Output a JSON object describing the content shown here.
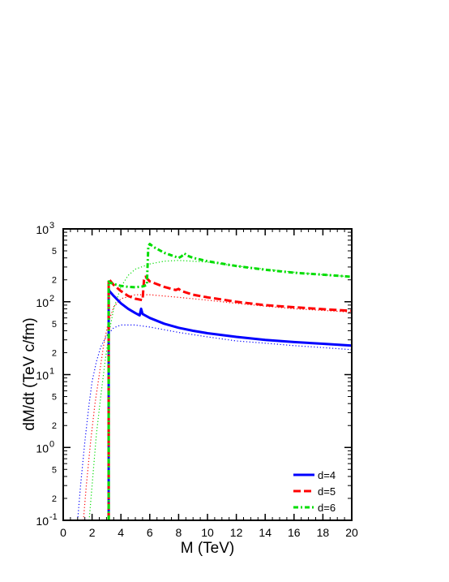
{
  "chart_data": {
    "type": "line",
    "title": "",
    "xlabel": "M (TeV)",
    "ylabel": "dM/dt (TeV c/fm)",
    "xlim": [
      0,
      20
    ],
    "ylim": [
      0.1,
      1000
    ],
    "yscale": "log",
    "grid": false,
    "legend_position": "bottom-right",
    "x_ticks": [
      0,
      2,
      4,
      6,
      8,
      10,
      12,
      14,
      16,
      18,
      20
    ],
    "y_major_ticks": [
      {
        "value": 0.1,
        "base": "10",
        "exp": "-1"
      },
      {
        "value": 1,
        "base": "10",
        "exp": "0"
      },
      {
        "value": 10,
        "base": "10",
        "exp": "1"
      },
      {
        "value": 100,
        "base": "10",
        "exp": "2"
      },
      {
        "value": 1000,
        "base": "10",
        "exp": "3"
      }
    ],
    "y_minor_labels": [
      {
        "value": 0.2,
        "label": "2"
      },
      {
        "value": 0.5,
        "label": "5"
      },
      {
        "value": 2,
        "label": "2"
      },
      {
        "value": 5,
        "label": "5"
      },
      {
        "value": 20,
        "label": "2"
      },
      {
        "value": 50,
        "label": "5"
      },
      {
        "value": 200,
        "label": "2"
      },
      {
        "value": 500,
        "label": "5"
      }
    ],
    "series": [
      {
        "name": "d=4",
        "color": "#0000ff",
        "style": "solid",
        "x": [
          3.15,
          3.15,
          3.2,
          3.5,
          4.0,
          4.5,
          5.0,
          5.3,
          5.4,
          5.5,
          6,
          7,
          8,
          9,
          10,
          12,
          14,
          16,
          18,
          20
        ],
        "y": [
          0.1,
          150,
          140,
          120,
          95,
          80,
          70,
          65,
          80,
          68,
          60,
          50,
          44,
          40,
          37,
          33,
          30,
          28,
          26.5,
          25
        ]
      },
      {
        "name": "d=5",
        "color": "#ff0000",
        "style": "dashed",
        "x": [
          3.15,
          3.15,
          3.2,
          3.5,
          4.0,
          4.5,
          5.0,
          5.5,
          5.6,
          5.7,
          6,
          7,
          7.8,
          8.0,
          8.2,
          9,
          10,
          12,
          14,
          16,
          18,
          20
        ],
        "y": [
          0.1,
          205,
          200,
          170,
          140,
          120,
          110,
          105,
          200,
          220,
          190,
          160,
          145,
          150,
          140,
          125,
          115,
          100,
          90,
          84,
          79,
          75
        ]
      },
      {
        "name": "d=6",
        "color": "#00dd00",
        "style": "dashdot",
        "x": [
          3.15,
          3.15,
          3.2,
          3.5,
          4.0,
          4.5,
          5.0,
          5.5,
          5.8,
          5.9,
          6.0,
          6.3,
          7,
          8,
          8.2,
          8.4,
          8.6,
          9,
          10,
          12,
          14,
          16,
          18,
          20
        ],
        "y": [
          0.1,
          190,
          185,
          175,
          165,
          160,
          158,
          162,
          170,
          580,
          620,
          560,
          470,
          400,
          420,
          460,
          430,
          400,
          360,
          310,
          275,
          250,
          235,
          220
        ]
      }
    ],
    "reference_series": [
      {
        "color": "#0000ff",
        "style": "dotted",
        "x": [
          1.0,
          1.2,
          1.5,
          1.8,
          2.0,
          2.3,
          2.6,
          3.0,
          3.5,
          4,
          5,
          6,
          8,
          10,
          12,
          14,
          16,
          18,
          20
        ],
        "y": [
          0.1,
          0.3,
          1.2,
          4,
          8,
          15,
          24,
          34,
          44,
          48,
          48,
          45,
          38,
          33,
          29,
          27,
          25,
          23.5,
          22
        ]
      },
      {
        "color": "#ff0000",
        "style": "dotted",
        "x": [
          1.4,
          1.6,
          1.9,
          2.2,
          2.5,
          2.8,
          3.1,
          3.5,
          4,
          5,
          6,
          8,
          10,
          12,
          14,
          16,
          18,
          20
        ],
        "y": [
          0.1,
          0.3,
          1.2,
          4,
          10,
          25,
          50,
          85,
          110,
          125,
          125,
          115,
          105,
          95,
          87,
          80,
          76,
          72
        ]
      },
      {
        "color": "#00dd00",
        "style": "dotted",
        "x": [
          1.8,
          2.0,
          2.3,
          2.6,
          2.9,
          3.2,
          3.5,
          4,
          4.5,
          5,
          6,
          7,
          8,
          10,
          12,
          14,
          16,
          18,
          20
        ],
        "y": [
          0.1,
          0.3,
          1.5,
          5,
          15,
          40,
          80,
          160,
          230,
          280,
          330,
          360,
          370,
          350,
          310,
          280,
          255,
          235,
          220
        ]
      }
    ]
  }
}
